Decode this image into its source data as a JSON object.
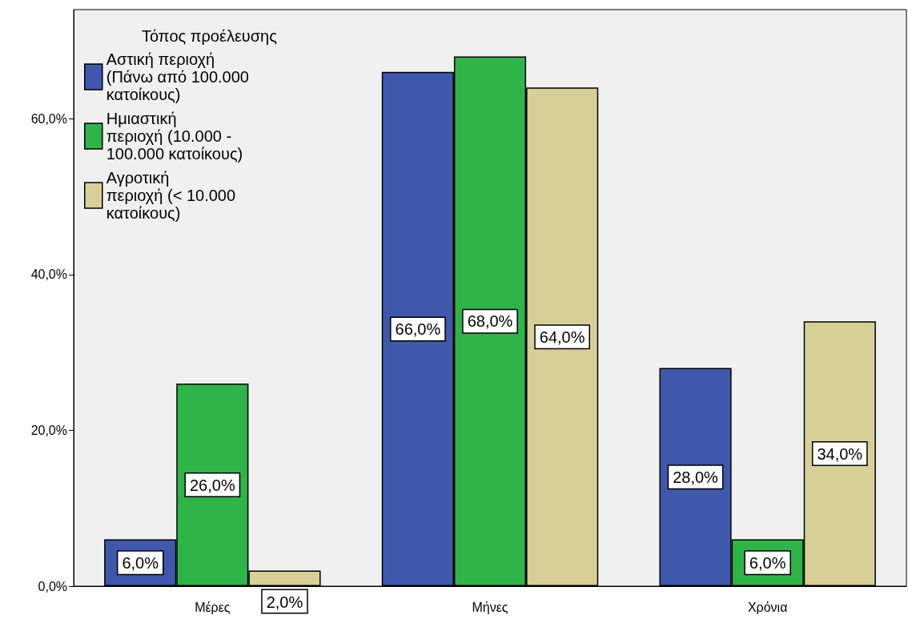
{
  "chart_data": {
    "type": "bar",
    "categories": [
      "Μέρες",
      "Μήνες",
      "Χρόνια"
    ],
    "legend_title": "Τόπος προέλευσης",
    "legend": "top left",
    "grid": false,
    "ylim": [
      0,
      74
    ],
    "yticks": [
      {
        "value": 0,
        "label": "0,0%"
      },
      {
        "value": 20,
        "label": "20,0%"
      },
      {
        "value": 40,
        "label": "40,0%"
      },
      {
        "value": 60,
        "label": "60,0%"
      }
    ],
    "series": [
      {
        "name": "Αστική περιοχή (Πάνω από 100.000 κατοίκους)",
        "color": "#3f58ac",
        "values": [
          6,
          66,
          28
        ],
        "value_labels": [
          "6,0%",
          "66,0%",
          "28,0%"
        ]
      },
      {
        "name": "Ημιαστική περιοχή (10.000 - 100.000 κατοίκους)",
        "color": "#2fb44a",
        "values": [
          26,
          68,
          6
        ],
        "value_labels": [
          "26,0%",
          "68,0%",
          "6,0%"
        ]
      },
      {
        "name": "Αγροτική περιοχή (< 10.000 κατοίκους)",
        "color": "#d6cf98",
        "values": [
          2,
          64,
          34
        ],
        "value_labels": [
          "2,0%",
          "64,0%",
          "34,0%"
        ]
      }
    ]
  }
}
